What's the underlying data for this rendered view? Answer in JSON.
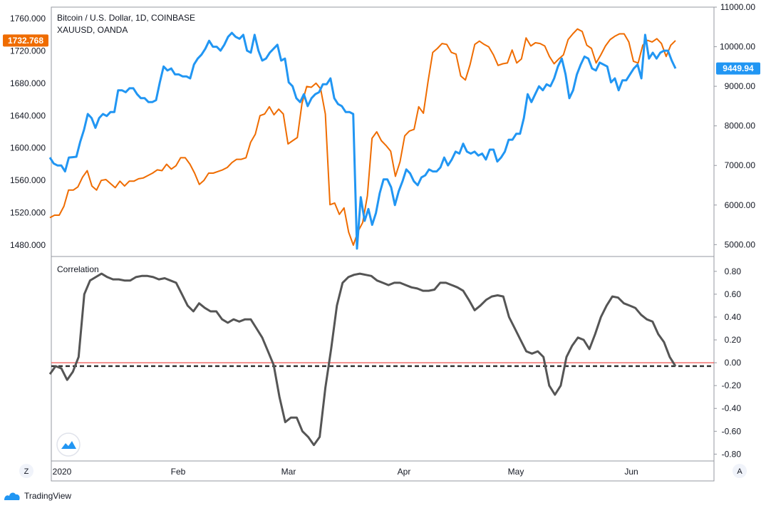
{
  "chart_data": [
    {
      "type": "line",
      "title": "Bitcoin / U.S. Dollar, 1D, COINBASE",
      "subtitle": "XAUUSD, OANDA",
      "x_tick_labels": [
        "2020",
        "Feb",
        "Mar",
        "Apr",
        "May",
        "Jun"
      ],
      "series": [
        {
          "name": "Bitcoin / U.S. Dollar, 1D, COINBASE",
          "axis": "right",
          "color": "#2196f3",
          "last_value_label": "9449.94",
          "y": [
            7200,
            7050,
            7000,
            7000,
            6850,
            7200,
            7210,
            7220,
            7600,
            7900,
            8300,
            8200,
            7950,
            8200,
            8300,
            8250,
            8350,
            8350,
            8900,
            8900,
            8850,
            8950,
            8950,
            8800,
            8700,
            8700,
            8600,
            8600,
            8650,
            9100,
            9500,
            9400,
            9450,
            9300,
            9300,
            9250,
            9250,
            9200,
            9550,
            9700,
            9800,
            9950,
            10150,
            10000,
            10000,
            9900,
            10050,
            10250,
            10350,
            10250,
            10200,
            10300,
            9900,
            9850,
            10300,
            9900,
            9650,
            9700,
            9850,
            9950,
            10050,
            9650,
            9700,
            9100,
            9000,
            8700,
            8600,
            8800,
            8500,
            8700,
            8800,
            8850,
            9050,
            9050,
            9200,
            8700,
            8550,
            8500,
            8350,
            8350,
            8300,
            4900,
            6200,
            5600,
            5900,
            5500,
            5800,
            6300,
            6650,
            6650,
            6450,
            6000,
            6350,
            6600,
            6900,
            6800,
            6600,
            6500,
            6700,
            6750,
            6900,
            6850,
            6850,
            6950,
            7200,
            7000,
            7150,
            7350,
            7300,
            7550,
            7350,
            7300,
            7350,
            7250,
            7300,
            7150,
            7400,
            7400,
            7100,
            7200,
            7350,
            7650,
            7650,
            7800,
            7800,
            8200,
            8800,
            8600,
            8800,
            9000,
            8900,
            9050,
            9000,
            9200,
            9500,
            9700,
            9300,
            8700,
            8900,
            9300,
            9550,
            9750,
            9700,
            9450,
            9400,
            9600,
            9550,
            9500,
            9100,
            9200,
            8900,
            9150,
            9150,
            9300,
            9450,
            9550,
            9200,
            10300,
            9700,
            9850,
            9700,
            9850,
            9900,
            9900,
            9650,
            9450
          ],
          "last_value": 9449.94
        },
        {
          "name": "XAUUSD, OANDA",
          "axis": "left",
          "color": "#ef6c00",
          "last_value_label": "1732.768",
          "y": [
            1514,
            1517,
            1517,
            1528,
            1548,
            1548,
            1552,
            1564,
            1572,
            1553,
            1548,
            1560,
            1561,
            1556,
            1551,
            1559,
            1553,
            1559,
            1559,
            1562,
            1563,
            1566,
            1569,
            1573,
            1572,
            1580,
            1574,
            1578,
            1588,
            1588,
            1580,
            1569,
            1555,
            1560,
            1569,
            1569,
            1571,
            1573,
            1576,
            1582,
            1586,
            1586,
            1588,
            1607,
            1617,
            1640,
            1642,
            1651,
            1641,
            1648,
            1642,
            1605,
            1609,
            1613,
            1655,
            1676,
            1675,
            1680,
            1673,
            1642,
            1530,
            1532,
            1518,
            1526,
            1496,
            1480,
            1497,
            1508,
            1541,
            1612,
            1620,
            1609,
            1603,
            1596,
            1565,
            1583,
            1615,
            1621,
            1623,
            1651,
            1643,
            1682,
            1718,
            1723,
            1729,
            1728,
            1718,
            1716,
            1689,
            1684,
            1703,
            1728,
            1732,
            1728,
            1725,
            1715,
            1702,
            1704,
            1705,
            1721,
            1705,
            1710,
            1736,
            1726,
            1730,
            1729,
            1726,
            1713,
            1704,
            1710,
            1715,
            1734,
            1741,
            1747,
            1744,
            1727,
            1723,
            1705,
            1715,
            1726,
            1734,
            1738,
            1741,
            1741,
            1731,
            1707,
            1705,
            1727,
            1733,
            1731,
            1735,
            1729,
            1713,
            1727,
            1732.768
          ],
          "last_value": 1732.768
        }
      ],
      "y_left": {
        "ylim": [
          1466,
          1774
        ],
        "tick_labels": [
          "1760.000",
          "1720.000",
          "1680.000",
          "1640.000",
          "1600.000",
          "1560.000",
          "1520.000",
          "1480.000"
        ],
        "ticks": [
          1760,
          1720,
          1680,
          1640,
          1600,
          1560,
          1520,
          1480
        ]
      },
      "y_right": {
        "ylim": [
          4700,
          11000
        ],
        "tick_labels": [
          "11000.00",
          "10000.00",
          "9000.00",
          "8000.00",
          "7000.00",
          "6000.00",
          "5000.00"
        ],
        "ticks": [
          11000,
          10000,
          9000,
          8000,
          7000,
          6000,
          5000
        ]
      },
      "legend": "top-left",
      "grid": false
    },
    {
      "type": "line",
      "title": "Correlation",
      "series": [
        {
          "name": "Correlation",
          "color": "#555555",
          "y": [
            -0.1,
            -0.03,
            -0.05,
            -0.15,
            -0.08,
            0.05,
            0.6,
            0.72,
            0.75,
            0.78,
            0.75,
            0.73,
            0.73,
            0.72,
            0.72,
            0.75,
            0.76,
            0.76,
            0.75,
            0.73,
            0.74,
            0.72,
            0.7,
            0.6,
            0.5,
            0.45,
            0.52,
            0.48,
            0.45,
            0.45,
            0.38,
            0.35,
            0.38,
            0.36,
            0.38,
            0.38,
            0.3,
            0.22,
            0.1,
            -0.02,
            -0.3,
            -0.52,
            -0.48,
            -0.48,
            -0.6,
            -0.65,
            -0.72,
            -0.65,
            -0.22,
            0.12,
            0.5,
            0.7,
            0.75,
            0.77,
            0.78,
            0.77,
            0.76,
            0.72,
            0.7,
            0.68,
            0.7,
            0.7,
            0.68,
            0.66,
            0.65,
            0.63,
            0.63,
            0.64,
            0.7,
            0.7,
            0.68,
            0.66,
            0.63,
            0.55,
            0.46,
            0.5,
            0.55,
            0.58,
            0.59,
            0.58,
            0.4,
            0.3,
            0.2,
            0.1,
            0.08,
            0.1,
            0.05,
            -0.2,
            -0.28,
            -0.2,
            0.05,
            0.15,
            0.22,
            0.2,
            0.12,
            0.25,
            0.4,
            0.5,
            0.58,
            0.57,
            0.52,
            0.5,
            0.48,
            0.42,
            0.38,
            0.36,
            0.25,
            0.18,
            0.05,
            -0.03
          ],
          "last_value": -0.03
        }
      ],
      "reference_lines": [
        {
          "value": 0.0,
          "color": "#ef5350",
          "style": "solid"
        },
        {
          "value": -0.03,
          "color": "#333333",
          "style": "dashed"
        }
      ],
      "ylim": [
        -0.86,
        0.93
      ],
      "tick_labels": [
        "0.80",
        "0.60",
        "0.40",
        "0.20",
        "0.00",
        "-0.20",
        "-0.40",
        "-0.60",
        "-0.80"
      ],
      "ticks": [
        0.8,
        0.6,
        0.4,
        0.2,
        0.0,
        -0.2,
        -0.4,
        -0.6,
        -0.8
      ],
      "grid": false
    }
  ],
  "footer": {
    "brand": "TradingView"
  },
  "buttons": {
    "zoom_label": "Z",
    "auto_label": "A"
  },
  "colors": {
    "btc": "#2196f3",
    "xau": "#ef6c00",
    "corr": "#555555",
    "zero_line": "#ef5350",
    "border": "#9598a1"
  }
}
